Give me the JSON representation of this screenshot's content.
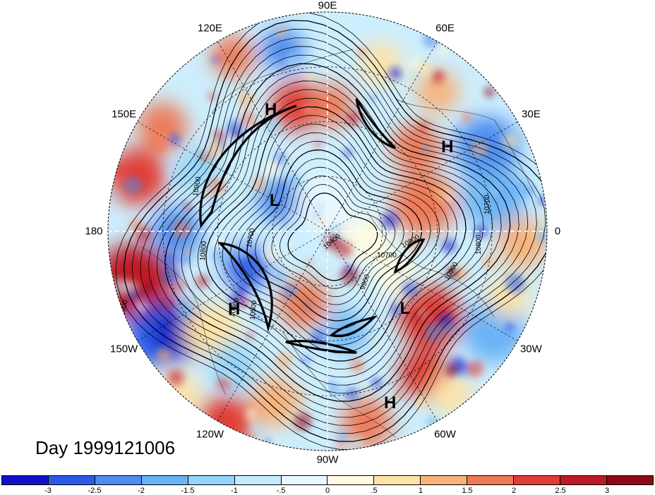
{
  "title": "Day 1999121006",
  "longitude_labels": [
    {
      "text": "90E",
      "lon": 90
    },
    {
      "text": "60E",
      "lon": 60
    },
    {
      "text": "30E",
      "lon": 30
    },
    {
      "text": "0",
      "lon": 0
    },
    {
      "text": "30W",
      "lon": -30
    },
    {
      "text": "60W",
      "lon": -60
    },
    {
      "text": "90W",
      "lon": -90
    },
    {
      "text": "120W",
      "lon": -120
    },
    {
      "text": "150W",
      "lon": -150
    },
    {
      "text": "180",
      "lon": 180
    },
    {
      "text": "150E",
      "lon": 150
    },
    {
      "text": "120E",
      "lon": 120
    }
  ],
  "pressure_centers": [
    {
      "text": "H",
      "lon": 115,
      "colat": 55
    },
    {
      "text": "H",
      "lon": 35,
      "colat": 60
    },
    {
      "text": "L",
      "lon": 150,
      "colat": 25
    },
    {
      "text": "H",
      "lon": -140,
      "colat": 50
    },
    {
      "text": "L",
      "lon": -45,
      "colat": 45
    },
    {
      "text": "H",
      "lon": -70,
      "colat": 75
    }
  ],
  "contour_labels": [
    "10900",
    "10800",
    "10700",
    "10600",
    "10500",
    "10400",
    "10700",
    "10800",
    "10900",
    "10800",
    "10700",
    "9900",
    "10900"
  ],
  "colorbar": {
    "ticks": [
      "-3",
      "-2.5",
      "-2",
      "-1.5",
      "-1",
      "-.5",
      "0",
      ".5",
      "1",
      "1.5",
      "2",
      "2.5",
      "3"
    ],
    "colors": [
      "#1010c8",
      "#2a5ae6",
      "#4d8df0",
      "#6ab3f5",
      "#94d4fa",
      "#c3ecfd",
      "#e9f8fe",
      "#fffbe3",
      "#fde3a8",
      "#f8b27a",
      "#ee7a58",
      "#e03d36",
      "#be1a26",
      "#8c0a16"
    ]
  },
  "colors": {
    "dash_line": "#ffffff",
    "frame": "#000000"
  }
}
